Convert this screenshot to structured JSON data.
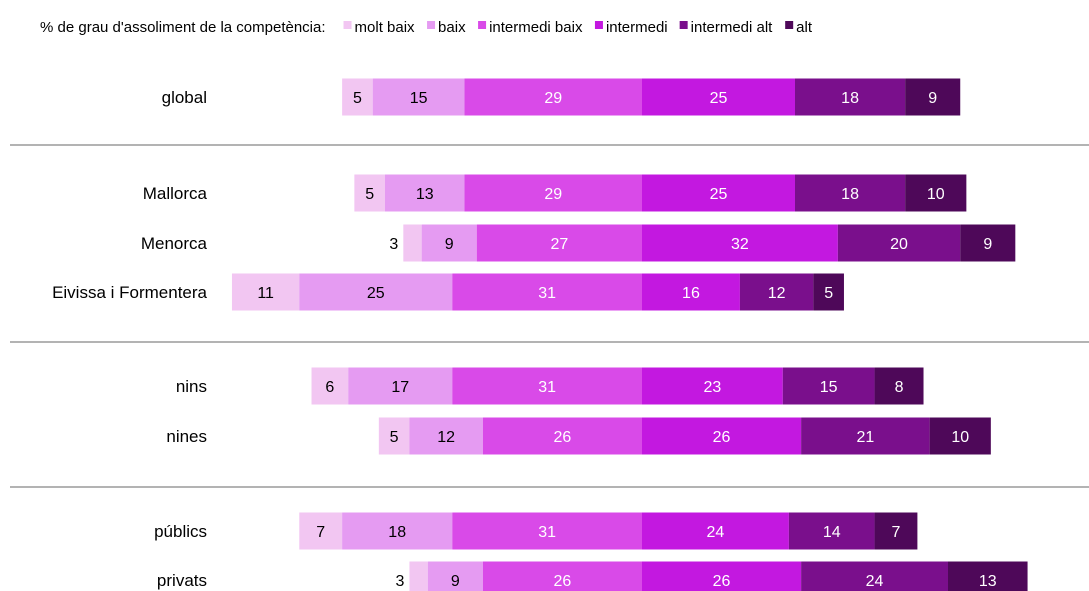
{
  "chart_data": {
    "type": "bar",
    "orientation": "horizontal",
    "stacked": "diverging",
    "legend_title": "% de grau d'assoliment de la competència:",
    "legend_placement": "top",
    "colors": [
      "#f2c6f2",
      "#e59bf2",
      "#d94ae8",
      "#c318e0",
      "#7a0f8c",
      "#4e0859"
    ],
    "series_names": [
      "molt baix",
      "baix",
      "intermedi baix",
      "intermedi",
      "intermedi alt",
      "alt"
    ],
    "groups": [
      [
        "global"
      ],
      [
        "Mallorca",
        "Menorca",
        "Eivissa i Formentera"
      ],
      [
        "nins",
        "nines"
      ],
      [
        "públics",
        "privats"
      ]
    ],
    "categories": [
      "global",
      "Mallorca",
      "Menorca",
      "Eivissa i Formentera",
      "nins",
      "nines",
      "públics",
      "privats"
    ],
    "series": [
      {
        "name": "molt baix",
        "values": [
          5,
          5,
          3,
          11,
          6,
          5,
          7,
          3
        ]
      },
      {
        "name": "baix",
        "values": [
          15,
          13,
          9,
          25,
          17,
          12,
          18,
          9
        ]
      },
      {
        "name": "intermedi baix",
        "values": [
          29,
          29,
          27,
          31,
          31,
          26,
          31,
          26
        ]
      },
      {
        "name": "intermedi",
        "values": [
          25,
          25,
          32,
          16,
          23,
          26,
          24,
          26
        ]
      },
      {
        "name": "intermedi alt",
        "values": [
          18,
          18,
          20,
          12,
          15,
          21,
          14,
          24
        ]
      },
      {
        "name": "alt",
        "values": [
          9,
          10,
          9,
          5,
          8,
          10,
          7,
          13
        ]
      }
    ],
    "grid": false
  }
}
